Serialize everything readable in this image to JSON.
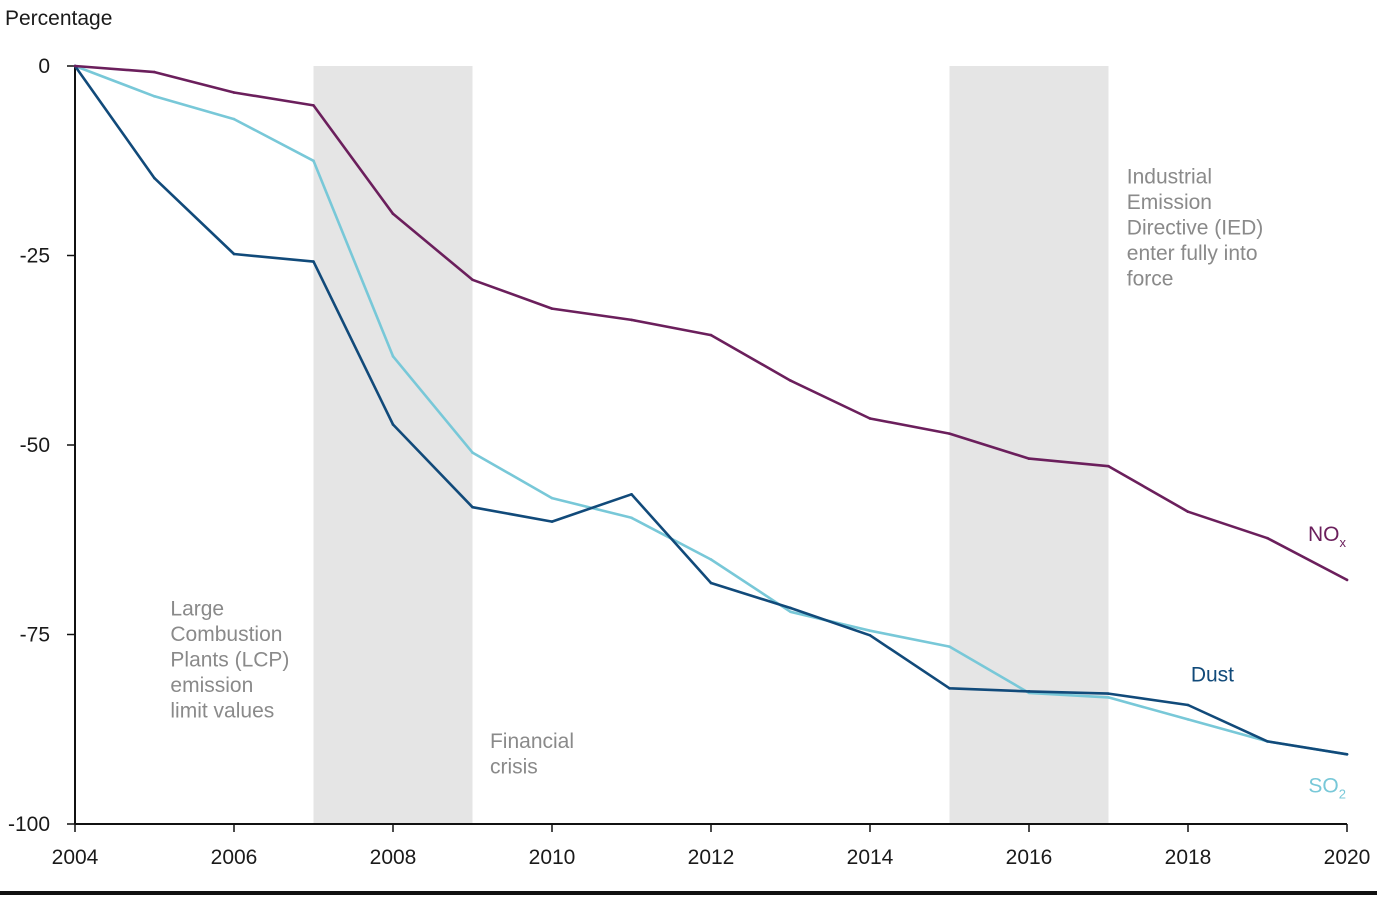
{
  "chart_data": {
    "type": "line",
    "ylabel": "Percentage",
    "xlabel": "",
    "x": [
      2004,
      2005,
      2006,
      2007,
      2008,
      2009,
      2010,
      2011,
      2012,
      2013,
      2014,
      2015,
      2016,
      2017,
      2018,
      2019,
      2020
    ],
    "xlim": [
      2004,
      2020
    ],
    "ylim": [
      -100,
      0
    ],
    "x_ticks": [
      "2004",
      "2006",
      "2008",
      "2010",
      "2012",
      "2014",
      "2016",
      "2018",
      "2020"
    ],
    "y_ticks": [
      "0",
      "-25",
      "-50",
      "-75",
      "-100"
    ],
    "grid": false,
    "series": [
      {
        "name": "NO",
        "subscript": "x",
        "color": "#6b1f5c",
        "values": [
          0,
          -0.8,
          -3.5,
          -5.2,
          -19.5,
          -28.2,
          -32,
          -33.5,
          -35.5,
          -41.5,
          -46.5,
          -48.5,
          -51.8,
          -52.8,
          -58.8,
          -62.3,
          -67.8
        ]
      },
      {
        "name": "Dust",
        "subscript": "",
        "color": "#114a7a",
        "values": [
          0,
          -14.8,
          -24.8,
          -25.8,
          -47.3,
          -58.2,
          -60.1,
          -56.5,
          -68.2,
          -71.5,
          -75.1,
          -82.1,
          -82.5,
          -82.8,
          -84.3,
          -89.1,
          -90.8
        ]
      },
      {
        "name": "SO",
        "subscript": "2",
        "color": "#78c8d8",
        "values": [
          0,
          -4,
          -7,
          -12.5,
          -38.3,
          -51,
          -57,
          -59.6,
          -65.1,
          -72,
          -74.5,
          -76.6,
          -82.7,
          -83.3,
          -86.2,
          -89.1,
          -90.8
        ]
      }
    ],
    "shaded_periods": [
      {
        "from": 2007,
        "to": 2009
      },
      {
        "from": 2015,
        "to": 2017
      }
    ],
    "shade_color": "#e5e5e5",
    "annotations": [
      {
        "lines": [
          "Large",
          "Combustion",
          "Plants (LCP)",
          "emission",
          "limit values"
        ],
        "x": 2005.2,
        "y": -72.5
      },
      {
        "lines": [
          "Financial",
          "crisis"
        ],
        "x": 2009.22,
        "y": -90
      },
      {
        "lines": [
          "Industrial",
          "Emission",
          "Directive (IED)",
          "enter fully into",
          "force"
        ],
        "x": 2017.23,
        "y": -15.5
      }
    ]
  }
}
